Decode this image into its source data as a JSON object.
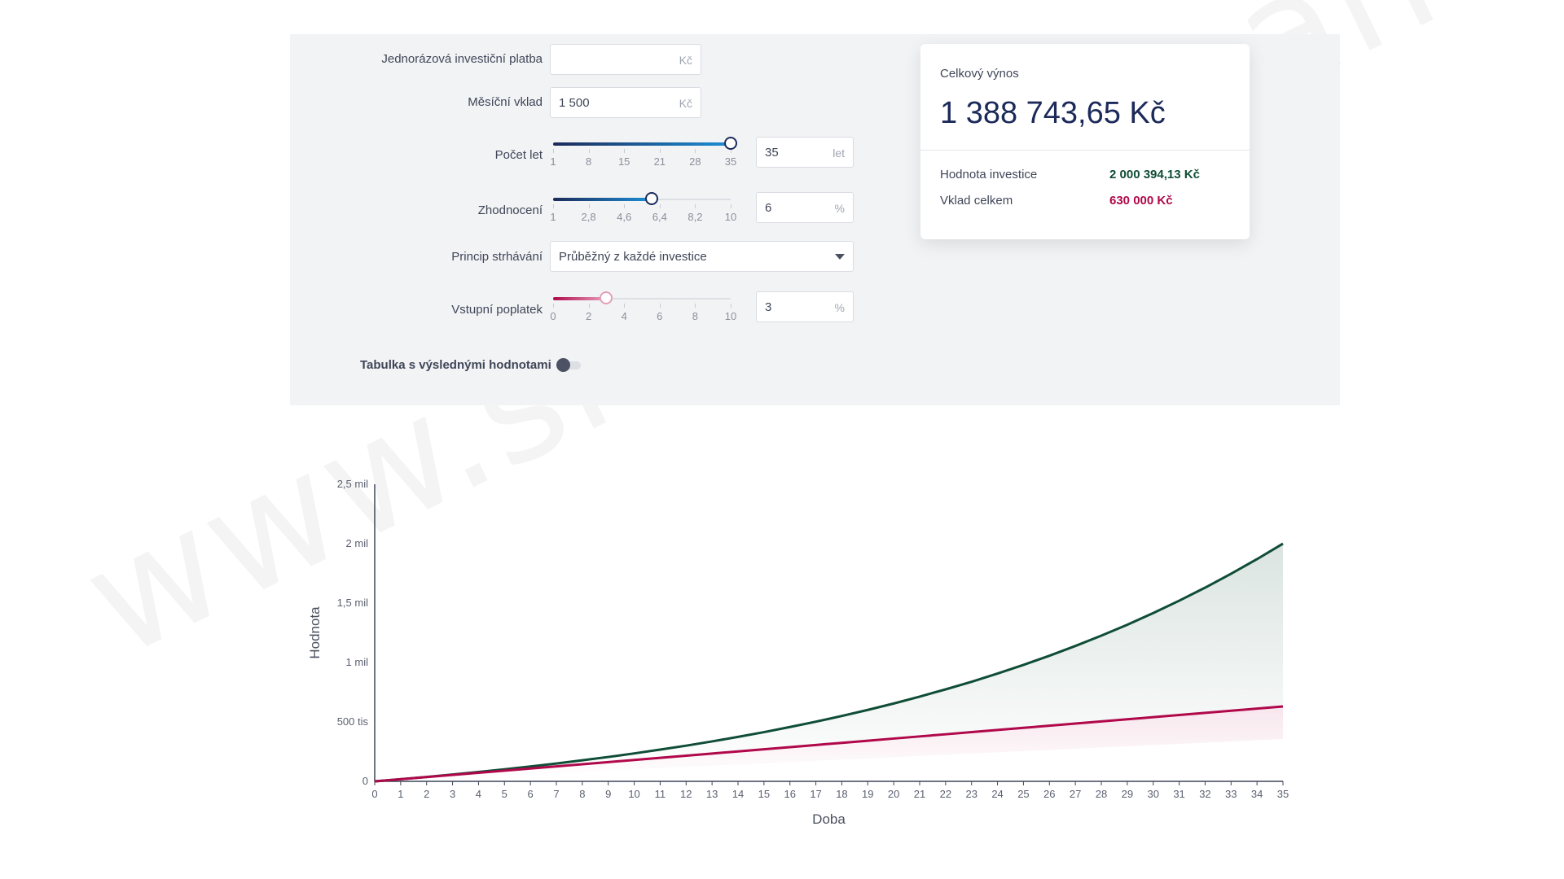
{
  "form": {
    "lump_sum": {
      "label": "Jednorázová investiční platba",
      "value": "",
      "unit": "Kč"
    },
    "monthly": {
      "label": "Měsíční vklad",
      "value": "1 500",
      "unit": "Kč"
    },
    "years": {
      "label": "Počet let",
      "value": "35",
      "unit": "let",
      "ticks": [
        "1",
        "8",
        "15",
        "21",
        "28",
        "35"
      ],
      "level": 1.0
    },
    "appreciation": {
      "label": "Zhodnocení",
      "value": "6",
      "unit": "%",
      "ticks": [
        "1",
        "2,8",
        "4,6",
        "6,4",
        "8,2",
        "10"
      ],
      "level": 0.556
    },
    "deduction": {
      "label": "Princip strhávání",
      "value": "Průběžný z každé investice"
    },
    "entry_fee": {
      "label": "Vstupní poplatek",
      "value": "3",
      "unit": "%",
      "ticks": [
        "0",
        "2",
        "4",
        "6",
        "8",
        "10"
      ],
      "level": 0.3
    },
    "table_toggle": {
      "label": "Tabulka s výslednými hodnotami",
      "on": false
    }
  },
  "result": {
    "title": "Celkový výnos",
    "value": "1 388 743,65 Kč",
    "rows": [
      {
        "label": "Hodnota investice",
        "value": "2 000 394,13 Kč",
        "color": "#0f4d36"
      },
      {
        "label": "Vklad celkem",
        "value": "630 000 Kč",
        "color": "#b0084a"
      }
    ]
  },
  "watermark": "www.snadné-finance.cz",
  "colors": {
    "slider_dark": "#1c2a5a",
    "slider_blue": "#1c8fd6",
    "fee": "#b0084a",
    "investment": "#0f4d36",
    "deposit": "#b0084a"
  },
  "chart_data": {
    "type": "area",
    "xlabel": "Doba",
    "ylabel": "Hodnota",
    "x": [
      0,
      1,
      2,
      3,
      4,
      5,
      6,
      7,
      8,
      9,
      10,
      11,
      12,
      13,
      14,
      15,
      16,
      17,
      18,
      19,
      20,
      21,
      22,
      23,
      24,
      25,
      26,
      27,
      28,
      29,
      30,
      31,
      32,
      33,
      34,
      35
    ],
    "ylim": [
      0,
      2500000
    ],
    "y_ticks": [
      {
        "value": 0,
        "label": "0"
      },
      {
        "value": 500000,
        "label": "500 tis"
      },
      {
        "value": 1000000,
        "label": "1 mil"
      },
      {
        "value": 1500000,
        "label": "1,5 mil"
      },
      {
        "value": 2000000,
        "label": "2 mil"
      },
      {
        "value": 2500000,
        "label": "2,5 mil"
      }
    ],
    "series": [
      {
        "name": "Hodnota investice",
        "color": "#0f4d36",
        "values": [
          0,
          18000,
          37000,
          57000,
          79000,
          101000,
          125000,
          150000,
          177000,
          205000,
          235000,
          267000,
          300000,
          336000,
          374000,
          414000,
          457000,
          502000,
          550000,
          601000,
          655000,
          713000,
          774000,
          838000,
          907000,
          980000,
          1057000,
          1139000,
          1226000,
          1318000,
          1416000,
          1520000,
          1630000,
          1747000,
          1870000,
          2000394
        ]
      },
      {
        "name": "Vklad celkem",
        "color": "#b0084a",
        "values": [
          0,
          18000,
          36000,
          54000,
          72000,
          90000,
          108000,
          126000,
          144000,
          162000,
          180000,
          198000,
          216000,
          234000,
          252000,
          270000,
          288000,
          306000,
          324000,
          342000,
          360000,
          378000,
          396000,
          414000,
          432000,
          450000,
          468000,
          486000,
          504000,
          522000,
          540000,
          558000,
          576000,
          594000,
          612000,
          630000
        ]
      }
    ],
    "grid": false,
    "legend": "none"
  }
}
